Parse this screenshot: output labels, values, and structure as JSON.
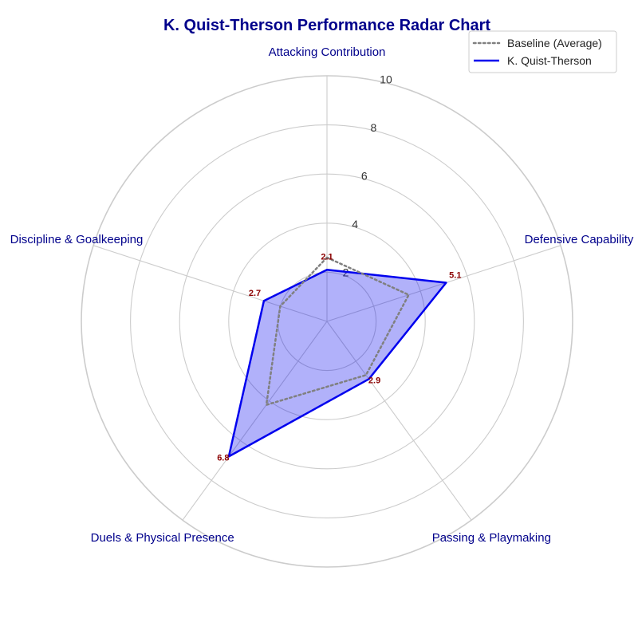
{
  "chart_data": {
    "type": "radar",
    "title": "K. Quist-Therson Performance Radar Chart",
    "categories": [
      "Attacking Contribution",
      "Defensive Capability",
      "Passing & Playmaking",
      "Duels & Physical Presence",
      "Discipline & Goalkeeping"
    ],
    "rlim": [
      0,
      10
    ],
    "rticks": [
      "2",
      "4",
      "6",
      "8",
      "10"
    ],
    "grid": true,
    "legend_position": "top-right",
    "series": [
      {
        "name": "Baseline (Average)",
        "values": [
          2.6,
          3.5,
          2.7,
          4.2,
          2.0
        ],
        "color": "#808080",
        "style": "dotted",
        "filled": false
      },
      {
        "name": "K. Quist-Therson",
        "values": [
          2.1,
          5.1,
          2.9,
          6.8,
          2.7
        ],
        "value_labels": [
          "2.1",
          "5.1",
          "2.9",
          "6.8",
          "2.7"
        ],
        "color": "#0000ee",
        "fill": "#aaaaff",
        "style": "solid",
        "filled": true
      }
    ]
  }
}
